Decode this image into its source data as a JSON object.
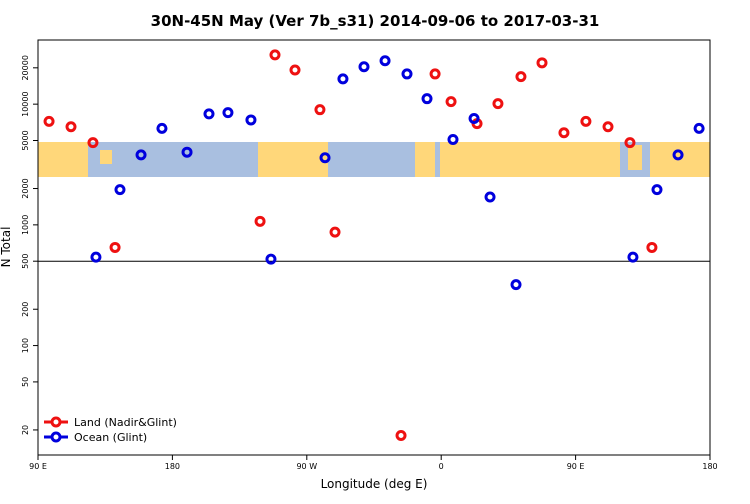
{
  "chart_data": {
    "type": "scatter",
    "title": "30N-45N May (Ver 7b_s31)   2014-09-06 to 2017-03-31",
    "x_label": "Longitude (deg E)",
    "y_label": "N Total",
    "log_y": true,
    "xlim": [
      90,
      540
    ],
    "ylim": [
      12.4,
      34000
    ],
    "xticks": [
      {
        "value": 90,
        "label": "90 E"
      },
      180,
      {
        "value": 270,
        "label": "90 W"
      },
      {
        "value": 360,
        "label": "0"
      },
      {
        "value": 450,
        "label": "90 E"
      },
      {
        "value": 540,
        "label": "180"
      }
    ],
    "yticks": [
      20,
      50,
      100,
      200,
      500,
      1000,
      2000,
      5000,
      10000,
      20000
    ],
    "reference_line": 500,
    "legend_position": "bottom-left",
    "series": [
      {
        "name": "Land (Nadir&Glint)",
        "color": "#ee1111",
        "x": [
          97.4,
          112.1,
          126.8,
          141.6,
          238.7,
          248.7,
          262.1,
          278.8,
          288.9,
          333.1,
          355.9,
          366.6,
          384.0,
          398.0,
          413.4,
          427.5,
          442.2,
          456.9,
          471.7,
          486.4,
          501.1
        ],
        "values": [
          7200,
          6500,
          4800,
          650,
          1070,
          25600,
          19200,
          9000,
          870,
          18,
          17800,
          10500,
          6900,
          10100,
          16900,
          22000,
          5800,
          7200,
          6500,
          4800,
          650
        ]
      },
      {
        "name": "Ocean (Glint)",
        "color": "#0000dd",
        "x": [
          128.8,
          144.9,
          159.0,
          173.0,
          189.8,
          204.5,
          217.2,
          232.6,
          246.0,
          282.2,
          294.2,
          308.3,
          322.4,
          337.1,
          350.5,
          367.9,
          382.0,
          392.7,
          410.1,
          488.4,
          504.5,
          518.6,
          532.7
        ],
        "values": [
          540,
          1960,
          3800,
          6300,
          4000,
          8300,
          8500,
          7400,
          520,
          3600,
          16200,
          20400,
          22900,
          17800,
          11100,
          5100,
          7600,
          1700,
          320,
          540,
          1960,
          3800,
          6300
        ]
      }
    ]
  }
}
